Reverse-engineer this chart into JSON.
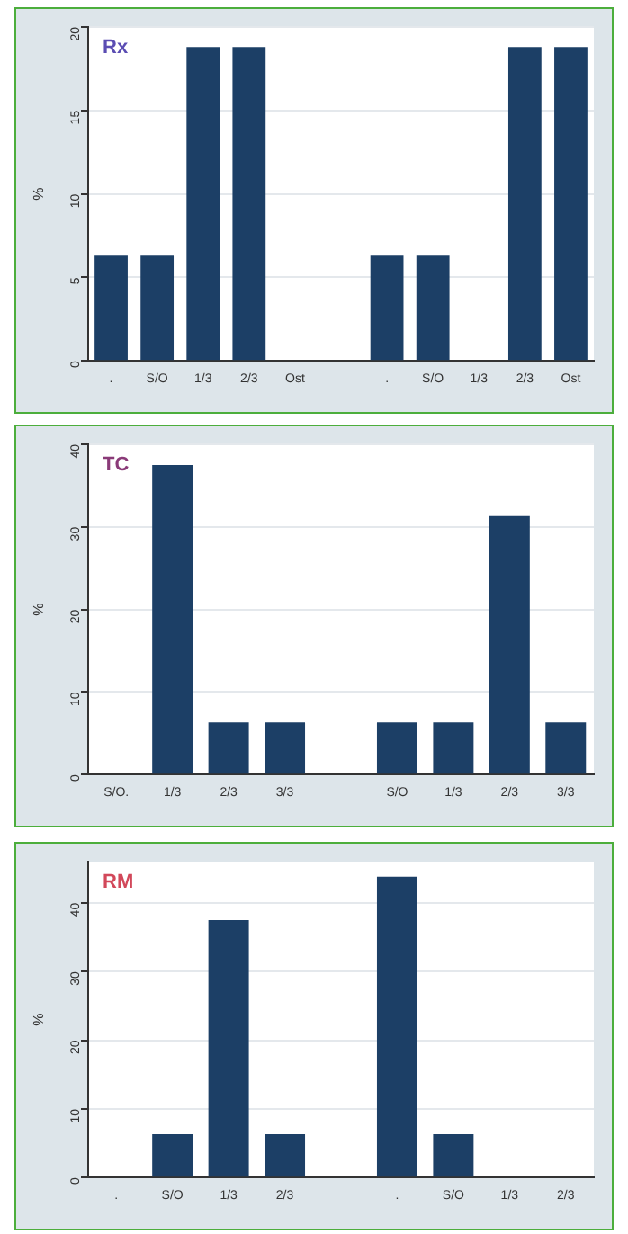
{
  "chart_data": [
    {
      "type": "bar",
      "title": "Rx",
      "ylabel": "%",
      "categories": [
        ".",
        "S/O",
        "1/3",
        "2/3",
        "Ost",
        null,
        ".",
        "S/O",
        "1/3",
        "2/3",
        "Ost"
      ],
      "values": [
        6.3,
        6.3,
        18.8,
        18.8,
        0,
        null,
        6.3,
        6.3,
        0,
        18.8,
        18.8
      ],
      "color": "#1c3f66",
      "ylim": [
        0,
        20
      ],
      "yticks": [
        0,
        5,
        10,
        15,
        20
      ],
      "grid": "y"
    },
    {
      "type": "bar",
      "title": "TC",
      "ylabel": "%",
      "categories": [
        "S/O.",
        "1/3",
        "2/3",
        "3/3",
        null,
        "S/O",
        "1/3",
        "2/3",
        "3/3"
      ],
      "values": [
        0,
        37.5,
        6.3,
        6.3,
        null,
        6.3,
        6.3,
        31.3,
        6.3
      ],
      "color": "#1c3f66",
      "ylim": [
        0,
        40
      ],
      "yticks": [
        0,
        10,
        20,
        30,
        40
      ],
      "grid": "y"
    },
    {
      "type": "bar",
      "title": "RM",
      "ylabel": "%",
      "categories": [
        ".",
        "S/O",
        "1/3",
        "2/3",
        null,
        ".",
        "S/O",
        "1/3",
        "2/3"
      ],
      "values": [
        0,
        6.3,
        37.5,
        6.3,
        null,
        43.8,
        6.3,
        0,
        0
      ],
      "color": "#1c3f66",
      "ylim": [
        0,
        46
      ],
      "yticks": [
        0,
        10,
        20,
        30,
        40
      ],
      "grid": "y"
    }
  ]
}
